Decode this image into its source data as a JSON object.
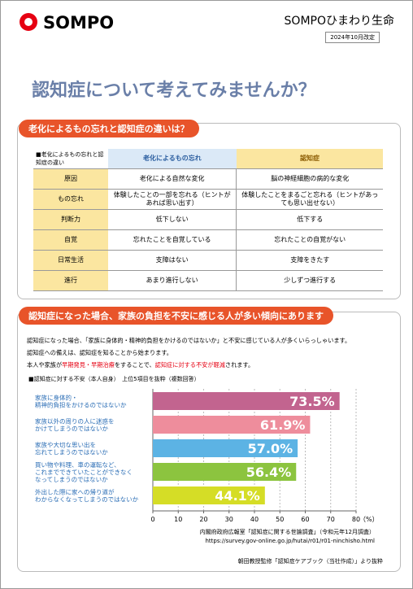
{
  "header": {
    "logo": "SOMPO",
    "company": "SOMPOひまわり生命",
    "revision": "2024年10月改定"
  },
  "title": "認知症について考えてみませんか？",
  "section1": {
    "heading": "老化によるもの忘れと認知症の違いは？",
    "table": {
      "caption": "■老化によるもの忘れと認知症の違い",
      "columns": [
        "老化によるもの忘れ",
        "認知症"
      ],
      "rows": [
        [
          "原因",
          "老化による自然な変化",
          "脳の神経細胞の病的な変化"
        ],
        [
          "もの忘れ",
          "体験したことの一部を忘れる（ヒントがあれば思い出す）",
          "体験したことをまるごと忘れる（ヒントがあっても思い出せない）"
        ],
        [
          "判断力",
          "低下しない",
          "低下する"
        ],
        [
          "自覚",
          "忘れたことを自覚している",
          "忘れたことの自覚がない"
        ],
        [
          "日常生活",
          "支障はない",
          "支障をきたす"
        ],
        [
          "進行",
          "あまり進行しない",
          "少しずつ進行する"
        ]
      ]
    }
  },
  "section2": {
    "heading": "認知症になった場合、家族の負担を不安に感じる人が多い傾向にあります",
    "paragraph": [
      "認知症になった場合、「家族に身体的・精神的負担をかけるのではないか」と不安に感じている人が多くいらっしゃいます。",
      "認知症への備えは、認知症を知ることから始まります。"
    ],
    "paragraph_last": [
      "本人や家族が",
      "早期発見・早期治療",
      "をすることで、",
      "認知症に対する不安が軽減",
      "されます。"
    ],
    "chart": {
      "type": "bar",
      "caption": "■認知症に対する不安（本人自身）　上位5項目を抜粋（複数回答）",
      "categories": [
        [
          "家族に身体的・",
          "精神的負担をかけるのではないか"
        ],
        [
          "家族以外の周りの人に迷惑を",
          "かけてしまうのではないか"
        ],
        [
          "家族や大切な思い出を",
          "忘れてしまうのではないか"
        ],
        [
          "買い物や料理、車の運転など、",
          "これまでできていたことができなく",
          "なってしまうのではないか"
        ],
        [
          "外出した際に家への帰り道が",
          "わからなくなってしまうのではないか"
        ]
      ],
      "values": [
        73.5,
        61.9,
        57.0,
        56.4,
        44.1
      ],
      "value_labels": [
        "73.5%",
        "61.9%",
        "57.0%",
        "56.4%",
        "44.1%"
      ],
      "colors": [
        "#c2648f",
        "#ee8d9c",
        "#5cb3e4",
        "#8cc43f",
        "#d5dd26"
      ],
      "xlim": [
        0,
        80
      ],
      "xticks": [
        0,
        10,
        20,
        30,
        40,
        50,
        60,
        70,
        80
      ],
      "x_unit": "（%）",
      "grid": true
    },
    "source": [
      "内閣府政府広報室「認知症に関する世論調査」（令和元年12月調査）",
      "https://survey.gov-online.go.jp/hutai/r01/r01-ninchisho.html"
    ]
  },
  "footer": "朝田教授監修「認知症ケアブック（当社作成）」より抜粋"
}
